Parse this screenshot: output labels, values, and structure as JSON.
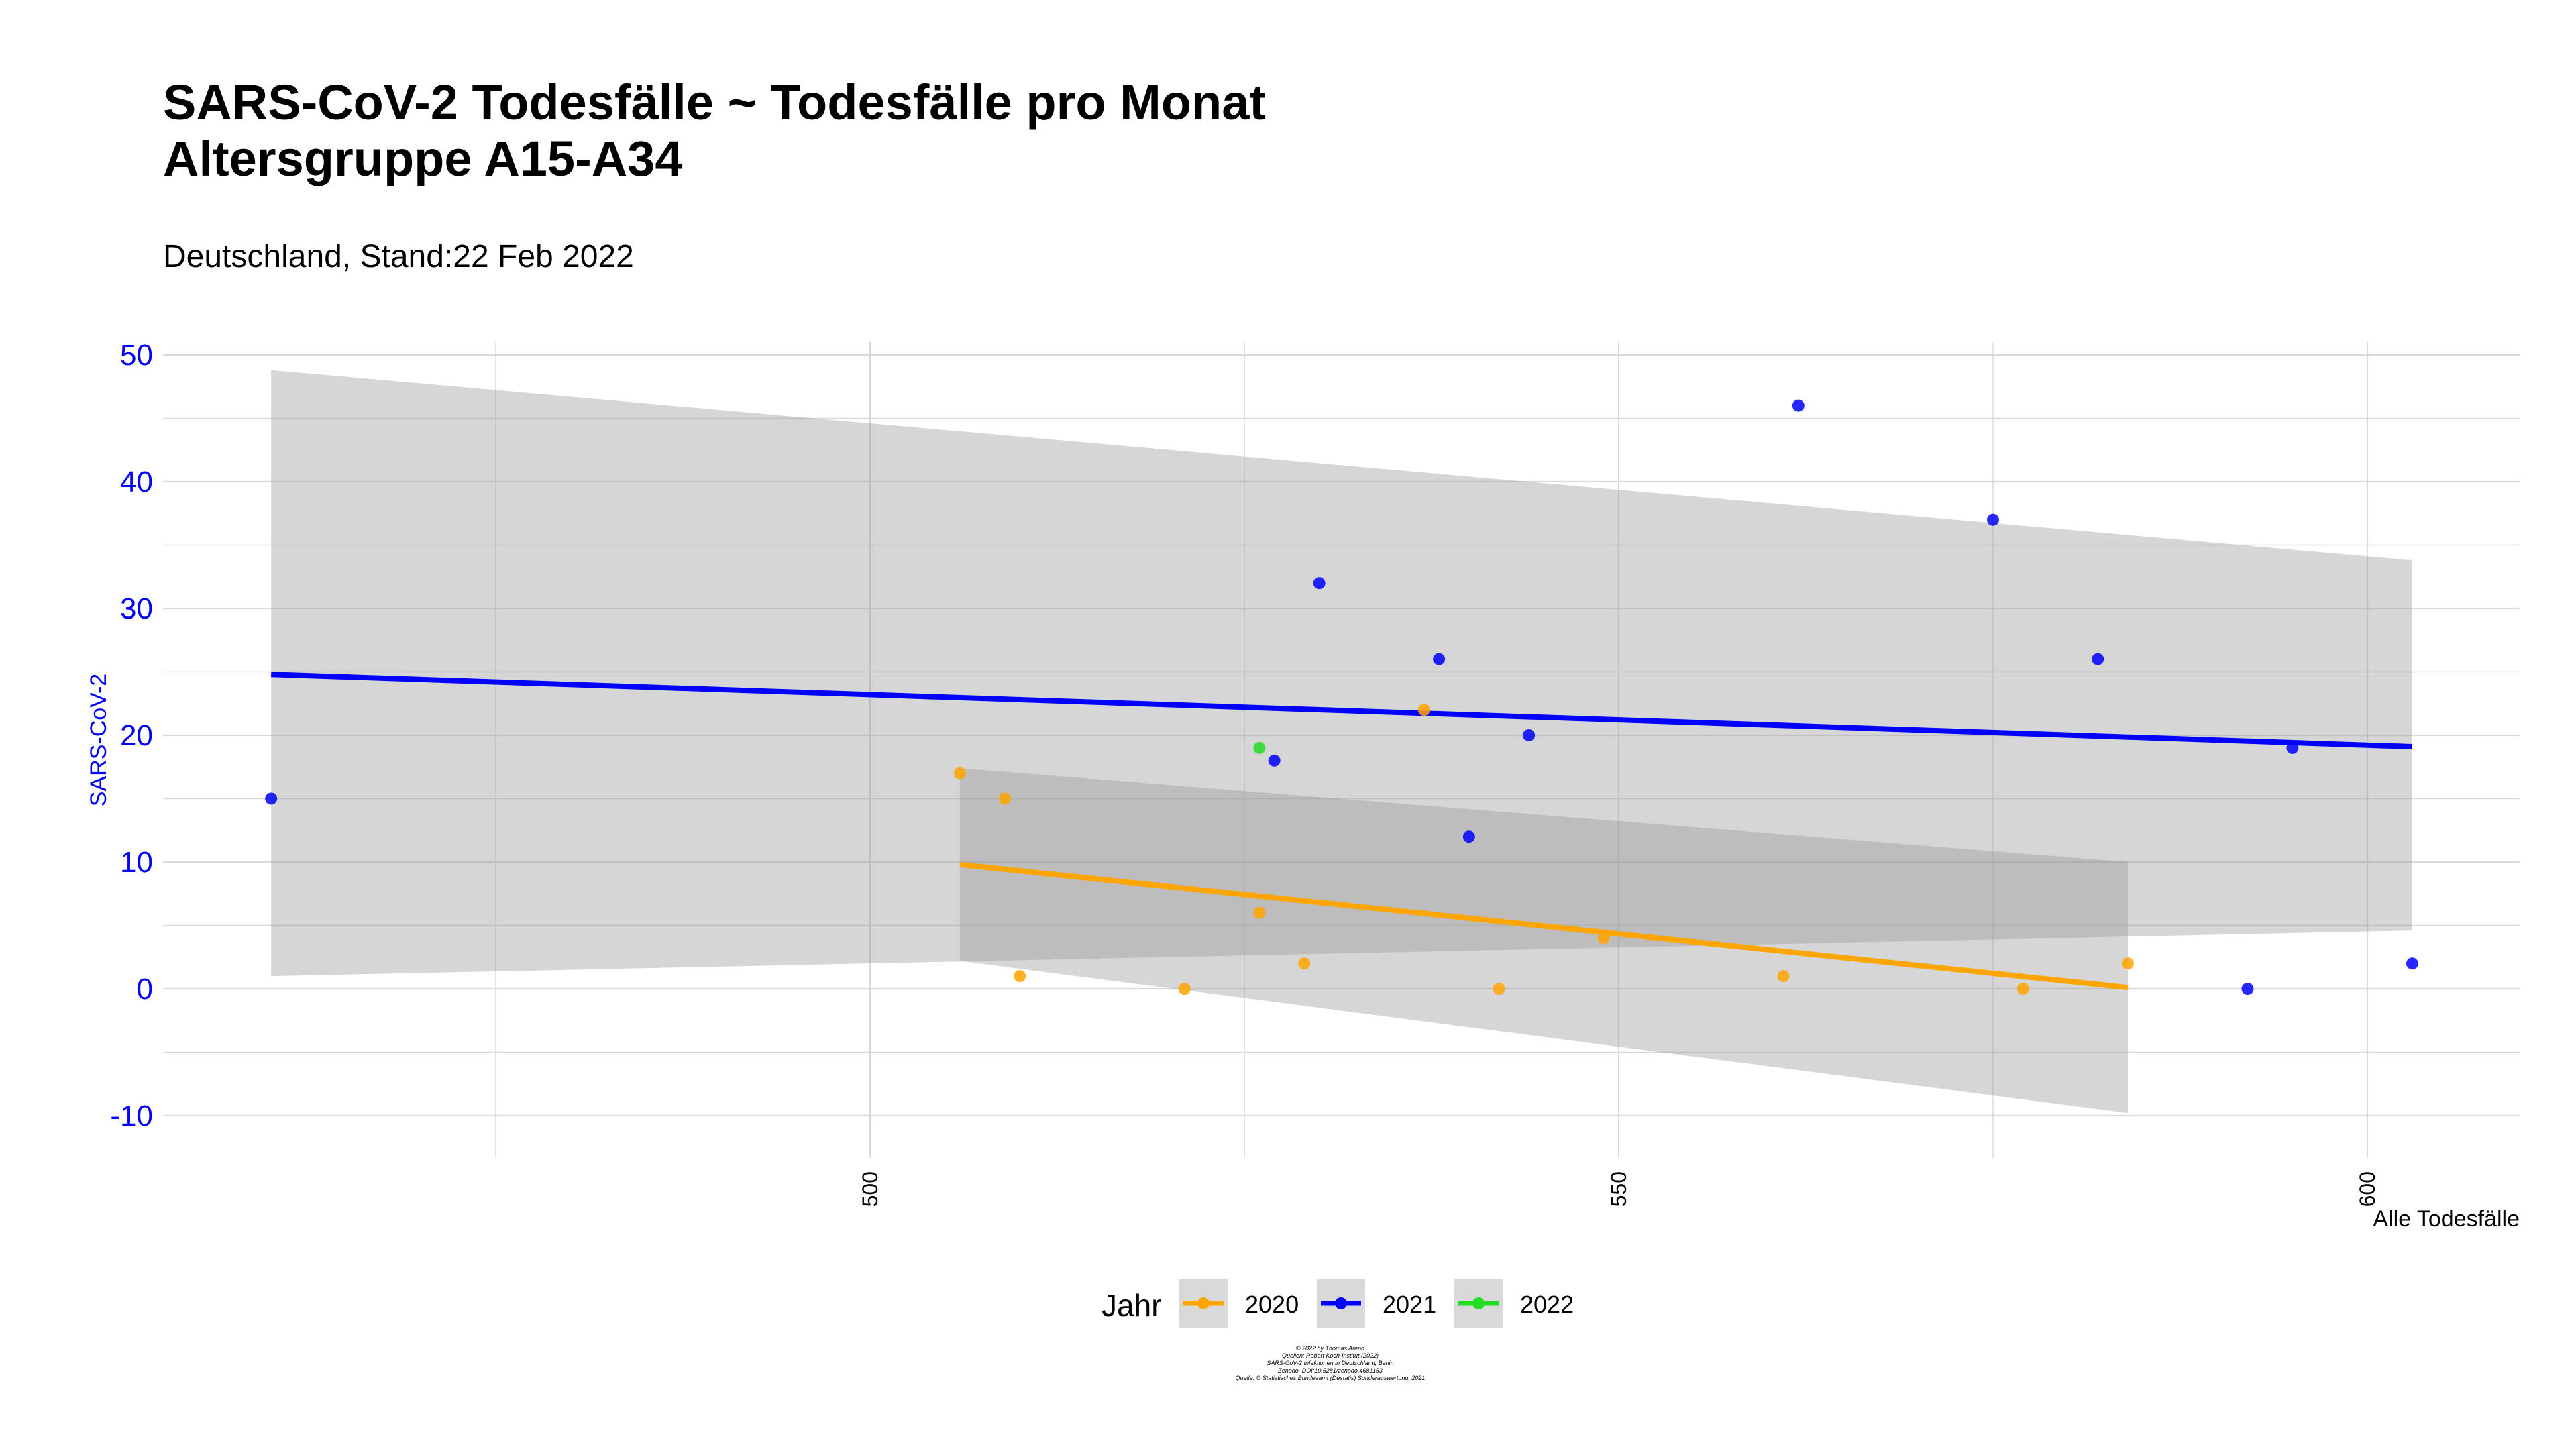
{
  "chart_data": {
    "type": "scatter",
    "title_line1": "SARS-CoV-2 Todesfälle ~ Todesfälle pro Monat",
    "title_line2": "Altersgruppe A15-A34",
    "subtitle": "Deutschland, Stand:22 Feb 2022",
    "xlabel": "Alle Todesfälle",
    "ylabel": "SARS-CoV-2",
    "xlim": [
      453,
      611
    ],
    "ylim": [
      -13,
      52
    ],
    "x_ticks": [
      500,
      550,
      600
    ],
    "y_ticks": [
      -10,
      0,
      10,
      20,
      30,
      40,
      50
    ],
    "legend_title": "Jahr",
    "legend_position": "bottom",
    "grid": true,
    "series": [
      {
        "name": "2020",
        "color": "#FFA500",
        "points": [
          [
            506,
            17
          ],
          [
            509,
            15
          ],
          [
            510,
            1
          ],
          [
            521,
            0
          ],
          [
            526,
            6
          ],
          [
            529,
            2
          ],
          [
            537,
            22
          ],
          [
            542,
            0
          ],
          [
            549,
            4
          ],
          [
            561,
            1
          ],
          [
            577,
            0
          ],
          [
            584,
            2
          ]
        ],
        "fit": {
          "x": [
            506,
            584
          ],
          "y": [
            9.8,
            0.1
          ]
        },
        "band_upper": [
          17.4,
          10.0
        ],
        "band_lower": [
          2.2,
          -9.8
        ]
      },
      {
        "name": "2021",
        "color": "#0000FF",
        "points": [
          [
            460,
            15
          ],
          [
            527,
            18
          ],
          [
            530,
            32
          ],
          [
            538,
            26
          ],
          [
            540,
            12
          ],
          [
            544,
            20
          ],
          [
            562,
            46
          ],
          [
            575,
            37
          ],
          [
            582,
            26
          ],
          [
            592,
            0
          ],
          [
            595,
            19
          ],
          [
            603,
            2
          ]
        ],
        "fit": {
          "x": [
            460,
            603
          ],
          "y": [
            24.8,
            19.1
          ]
        },
        "band_upper": [
          48.8,
          33.8
        ],
        "band_lower": [
          1.0,
          4.6
        ]
      },
      {
        "name": "2022",
        "color": "#22DD22",
        "points": [
          [
            526,
            19
          ]
        ]
      }
    ],
    "caption_lines": [
      "© 2022 by Thomas Arend",
      "Quellen: Robert Koch-Institut (2022)",
      "SARS-CoV-2 Infektionen in Deutschland, Berlin",
      "Zenodo. DOI:10.5281/zenodo.4681153",
      "Quelle: © Statistisches Bundesamt (Destatis) Sonderauswertung, 2021"
    ]
  }
}
